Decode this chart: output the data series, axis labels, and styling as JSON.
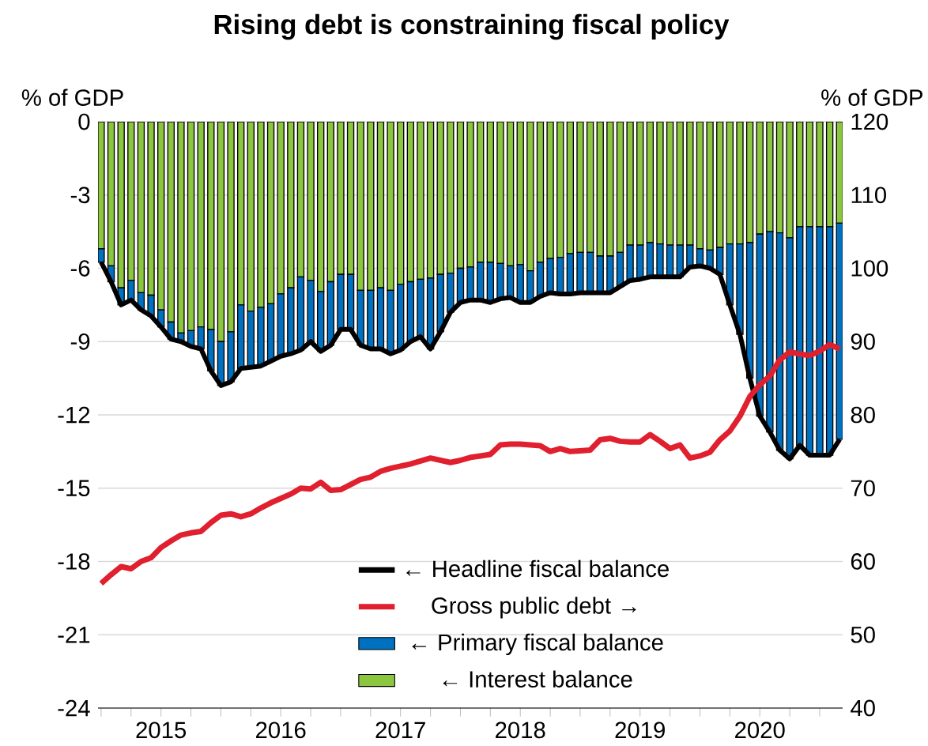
{
  "chart_data": {
    "type": "bar",
    "title": "Rising debt is constraining fiscal policy",
    "ylabel": "% of GDP",
    "y2label": "% of GDP",
    "x": [
      "2015-01",
      "2015-02",
      "2015-03",
      "2015-04",
      "2015-05",
      "2015-06",
      "2015-07",
      "2015-08",
      "2015-09",
      "2015-10",
      "2015-11",
      "2015-12",
      "2016-01",
      "2016-02",
      "2016-03",
      "2016-04",
      "2016-05",
      "2016-06",
      "2016-07",
      "2016-08",
      "2016-09",
      "2016-10",
      "2016-11",
      "2016-12",
      "2017-01",
      "2017-02",
      "2017-03",
      "2017-04",
      "2017-05",
      "2017-06",
      "2017-07",
      "2017-08",
      "2017-09",
      "2017-10",
      "2017-11",
      "2017-12",
      "2018-01",
      "2018-02",
      "2018-03",
      "2018-04",
      "2018-05",
      "2018-06",
      "2018-07",
      "2018-08",
      "2018-09",
      "2018-10",
      "2018-11",
      "2018-12",
      "2019-01",
      "2019-02",
      "2019-03",
      "2019-04",
      "2019-05",
      "2019-06",
      "2019-07",
      "2019-08",
      "2019-09",
      "2019-10",
      "2019-11",
      "2019-12",
      "2020-01",
      "2020-02",
      "2020-03",
      "2020-04",
      "2020-05",
      "2020-06",
      "2020-07",
      "2020-08",
      "2020-09",
      "2020-10",
      "2020-11",
      "2020-12",
      "2021-01",
      "2021-02",
      "2021-03"
    ],
    "stacked": true,
    "series": [
      {
        "name": "← Headline fiscal balance",
        "type": "line",
        "color": "#000000",
        "values": [
          -5.75,
          -6.55,
          -7.5,
          -7.3,
          -7.7,
          -7.95,
          -8.4,
          -8.9,
          -9.0,
          -9.2,
          -9.3,
          -10.2,
          -10.8,
          -10.65,
          -10.1,
          -10.05,
          -10.0,
          -9.8,
          -9.6,
          -9.5,
          -9.35,
          -9.0,
          -9.4,
          -9.15,
          -8.5,
          -8.5,
          -9.15,
          -9.3,
          -9.3,
          -9.5,
          -9.35,
          -9.0,
          -8.8,
          -9.3,
          -8.6,
          -7.8,
          -7.4,
          -7.3,
          -7.3,
          -7.4,
          -7.25,
          -7.2,
          -7.4,
          -7.4,
          -7.15,
          -7.0,
          -7.05,
          -7.05,
          -7.0,
          -7.0,
          -7.0,
          -7.0,
          -6.75,
          -6.5,
          -6.45,
          -6.35,
          -6.35,
          -6.35,
          -6.35,
          -5.95,
          -5.9,
          -6.0,
          -6.25,
          -7.5,
          -8.7,
          -10.5,
          -12.05,
          -12.7,
          -13.45,
          -13.8,
          -13.25,
          -13.65,
          -13.65,
          -13.65,
          -13.0
        ]
      },
      {
        "name": "Gross public debt →",
        "type": "line",
        "axis": "y2",
        "color": "#e0202e",
        "values": [
          57.0,
          58.2,
          59.3,
          59.0,
          60.0,
          60.5,
          61.9,
          62.8,
          63.6,
          63.9,
          64.1,
          65.3,
          66.3,
          66.5,
          66.1,
          66.5,
          67.3,
          68.0,
          68.6,
          69.2,
          70.0,
          69.9,
          70.8,
          69.7,
          69.8,
          70.5,
          71.2,
          71.5,
          72.3,
          72.7,
          73.0,
          73.3,
          73.7,
          74.1,
          73.8,
          73.5,
          73.8,
          74.2,
          74.4,
          74.6,
          75.9,
          76.0,
          76.0,
          75.9,
          75.8,
          75.0,
          75.4,
          75.0,
          75.1,
          75.2,
          76.6,
          76.8,
          76.4,
          76.3,
          76.3,
          77.3,
          76.4,
          75.4,
          75.9,
          74.1,
          74.4,
          74.9,
          76.6,
          77.8,
          79.8,
          82.5,
          84.1,
          85.3,
          87.5,
          88.6,
          88.3,
          88.1,
          88.7,
          89.6,
          89.0
        ]
      },
      {
        "name": "← Interest balance",
        "color": "#8cc63f",
        "values": [
          -5.2,
          -5.9,
          -6.8,
          -6.5,
          -7.0,
          -7.1,
          -7.7,
          -8.2,
          -8.65,
          -8.55,
          -8.4,
          -8.5,
          -9.0,
          -8.6,
          -7.5,
          -7.75,
          -7.6,
          -7.45,
          -7.05,
          -6.8,
          -6.35,
          -6.5,
          -6.95,
          -6.55,
          -6.25,
          -6.25,
          -6.9,
          -6.9,
          -6.8,
          -6.9,
          -6.65,
          -6.55,
          -6.45,
          -6.4,
          -6.25,
          -6.2,
          -6.0,
          -5.95,
          -5.75,
          -5.75,
          -5.8,
          -5.9,
          -5.85,
          -6.1,
          -5.75,
          -5.6,
          -5.55,
          -5.4,
          -5.35,
          -5.35,
          -5.5,
          -5.5,
          -5.35,
          -5.05,
          -5.05,
          -4.95,
          -5.0,
          -5.05,
          -5.05,
          -5.05,
          -5.2,
          -5.25,
          -5.15,
          -5.0,
          -5.0,
          -4.95,
          -4.6,
          -4.5,
          -4.55,
          -4.75,
          -4.3,
          -4.3,
          -4.3,
          -4.3,
          -4.15
        ]
      },
      {
        "name": "← Primary fiscal balance",
        "color": "#0070c0",
        "values": [
          -0.55,
          -0.65,
          -0.7,
          -0.8,
          -0.7,
          -0.85,
          -0.7,
          -0.7,
          -0.35,
          -0.65,
          -0.9,
          -1.7,
          -1.8,
          -2.05,
          -2.6,
          -2.3,
          -2.4,
          -2.35,
          -2.55,
          -2.7,
          -3.0,
          -2.5,
          -2.45,
          -2.6,
          -2.25,
          -2.25,
          -2.25,
          -2.4,
          -2.5,
          -2.6,
          -2.7,
          -2.45,
          -2.35,
          -2.9,
          -2.35,
          -1.6,
          -1.4,
          -1.35,
          -1.55,
          -1.65,
          -1.45,
          -1.3,
          -1.55,
          -1.3,
          -1.4,
          -1.4,
          -1.5,
          -1.65,
          -1.65,
          -1.65,
          -1.5,
          -1.5,
          -1.4,
          -1.45,
          -1.4,
          -1.4,
          -1.35,
          -1.3,
          -1.3,
          -0.9,
          -0.7,
          -0.75,
          -1.1,
          -2.5,
          -3.7,
          -5.55,
          -7.45,
          -8.2,
          -8.9,
          -9.05,
          -8.95,
          -9.35,
          -9.35,
          -9.35,
          -8.85
        ]
      }
    ],
    "xlim": [
      "2014-12-22",
      "2021-03-10"
    ],
    "xticks": [
      {
        "value": "2015-01-01",
        "label": null
      },
      {
        "value": "2015-04-01",
        "label": null
      },
      {
        "value": "2015-07-01",
        "label": "2015"
      },
      {
        "value": "2015-10-01",
        "label": null
      },
      {
        "value": "2016-01-01",
        "label": null
      },
      {
        "value": "2016-04-01",
        "label": null
      },
      {
        "value": "2016-07-01",
        "label": "2016"
      },
      {
        "value": "2016-10-01",
        "label": null
      },
      {
        "value": "2017-01-01",
        "label": null
      },
      {
        "value": "2017-04-01",
        "label": null
      },
      {
        "value": "2017-07-01",
        "label": "2017"
      },
      {
        "value": "2017-10-01",
        "label": null
      },
      {
        "value": "2018-01-01",
        "label": null
      },
      {
        "value": "2018-04-01",
        "label": null
      },
      {
        "value": "2018-07-01",
        "label": "2018"
      },
      {
        "value": "2018-10-01",
        "label": null
      },
      {
        "value": "2019-01-01",
        "label": null
      },
      {
        "value": "2019-04-01",
        "label": null
      },
      {
        "value": "2019-07-01",
        "label": "2019"
      },
      {
        "value": "2019-10-01",
        "label": null
      },
      {
        "value": "2020-01-01",
        "label": null
      },
      {
        "value": "2020-04-01",
        "label": null
      },
      {
        "value": "2020-07-01",
        "label": "2020"
      },
      {
        "value": "2020-10-01",
        "label": null
      },
      {
        "value": "2021-01-01",
        "label": null
      }
    ],
    "ylim": [
      -24,
      0
    ],
    "yticks": [
      -24,
      -21,
      -18,
      -15,
      -12,
      -9,
      -6,
      -3,
      0
    ],
    "y2lim": [
      40,
      120
    ],
    "y2ticks": [
      40,
      50,
      60,
      70,
      80,
      90,
      100,
      110,
      120
    ],
    "grid": "y",
    "legend": "bottom"
  }
}
